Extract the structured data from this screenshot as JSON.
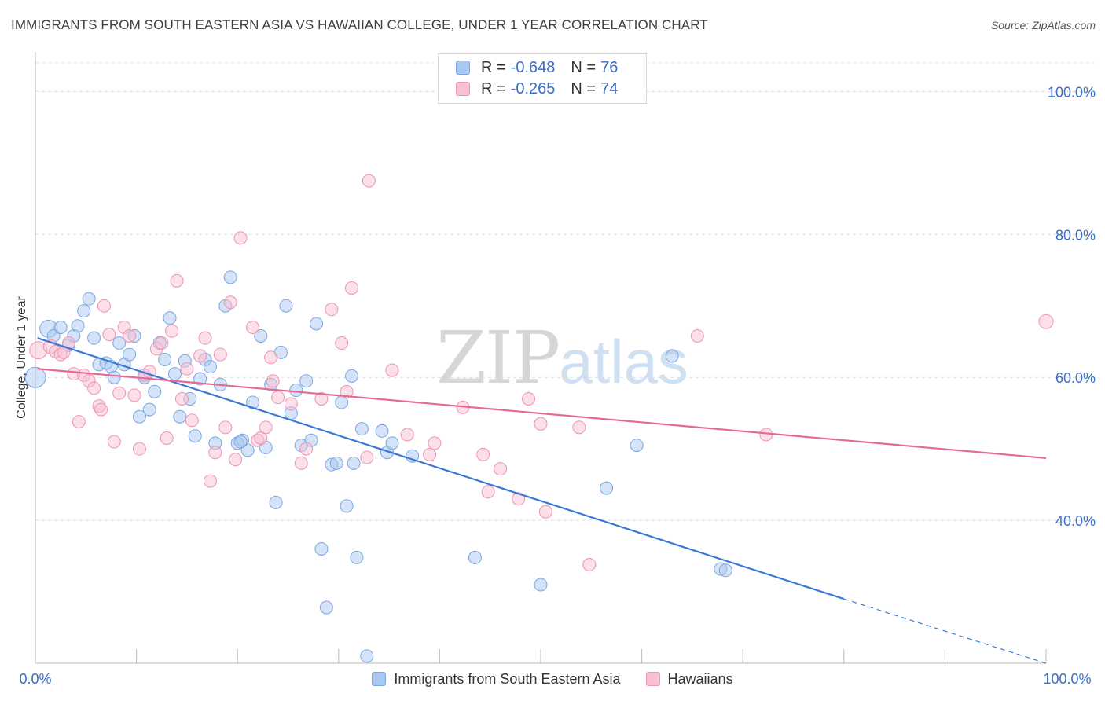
{
  "title": "IMMIGRANTS FROM SOUTH EASTERN ASIA VS HAWAIIAN COLLEGE, UNDER 1 YEAR CORRELATION CHART",
  "source": "Source: ZipAtlas.com",
  "watermark": {
    "zip": "ZIP",
    "atlas": "atlas"
  },
  "legend": {
    "rows": [
      {
        "r_label": "R =",
        "r_value": "-0.648",
        "n_label": "N =",
        "n_value": "76",
        "color": "#a9c8f0",
        "border": "#7aa7e0"
      },
      {
        "r_label": "R =",
        "r_value": "-0.265",
        "n_label": "N =",
        "n_value": "74",
        "color": "#f7c0d3",
        "border": "#ee93b3"
      }
    ]
  },
  "bottom_legend": {
    "items": [
      {
        "label": "Immigrants from South Eastern Asia",
        "color": "#a9c8f0",
        "border": "#7aa7e0"
      },
      {
        "label": "Hawaiians",
        "color": "#f7c0d3",
        "border": "#ee93b3"
      }
    ]
  },
  "colors": {
    "blue": "#3a78d6",
    "pink": "#e36a96",
    "tick_text": "#3a6fc7",
    "grid": "#dcdcdc"
  },
  "chart_data": {
    "type": "scatter",
    "title": "IMMIGRANTS FROM SOUTH EASTERN ASIA VS HAWAIIAN COLLEGE, UNDER 1 YEAR CORRELATION CHART",
    "xlabel": "",
    "ylabel": "College, Under 1 year",
    "xlim": [
      0,
      100
    ],
    "ylim": [
      20,
      104
    ],
    "x_tick_labels": [
      "0.0%",
      "100.0%"
    ],
    "y_ticks": [
      40,
      60,
      80,
      100
    ],
    "y_tick_labels": [
      "40.0%",
      "60.0%",
      "80.0%",
      "100.0%"
    ],
    "grid": true,
    "legend_position": "top-center",
    "series": [
      {
        "name": "Immigrants from South Eastern Asia",
        "color": "#a9c8f0",
        "trend": {
          "x0": 0.2,
          "y0": 65.5,
          "x1": 80,
          "y1": 29,
          "dash_to_x": 100,
          "dash_to_y": 20
        },
        "points": [
          [
            0.0,
            60.0,
            13
          ],
          [
            1.3,
            66.8,
            11
          ],
          [
            1.8,
            65.8,
            8
          ],
          [
            2.5,
            67.0,
            8
          ],
          [
            3.3,
            64.5,
            8
          ],
          [
            3.8,
            65.8,
            8
          ],
          [
            4.2,
            67.2,
            8
          ],
          [
            4.8,
            69.3,
            8
          ],
          [
            5.3,
            71.0,
            8
          ],
          [
            5.8,
            65.5,
            8
          ],
          [
            6.3,
            61.8,
            8
          ],
          [
            7.0,
            62.0,
            8
          ],
          [
            7.5,
            61.5,
            8
          ],
          [
            7.8,
            60.0,
            8
          ],
          [
            8.3,
            64.8,
            8
          ],
          [
            8.8,
            61.8,
            8
          ],
          [
            9.3,
            63.2,
            8
          ],
          [
            9.8,
            65.8,
            8
          ],
          [
            10.3,
            54.5,
            8
          ],
          [
            10.8,
            60.0,
            8
          ],
          [
            11.3,
            55.5,
            8
          ],
          [
            11.8,
            58.0,
            8
          ],
          [
            12.3,
            64.8,
            8
          ],
          [
            12.8,
            62.5,
            8
          ],
          [
            13.3,
            68.3,
            8
          ],
          [
            13.8,
            60.5,
            8
          ],
          [
            14.3,
            54.5,
            8
          ],
          [
            14.8,
            62.3,
            8
          ],
          [
            15.3,
            57.0,
            8
          ],
          [
            15.8,
            51.8,
            8
          ],
          [
            16.3,
            59.8,
            8
          ],
          [
            16.8,
            62.5,
            8
          ],
          [
            17.3,
            61.5,
            8
          ],
          [
            17.8,
            50.8,
            8
          ],
          [
            18.3,
            59.0,
            8
          ],
          [
            18.8,
            70.0,
            8
          ],
          [
            19.3,
            74.0,
            8
          ],
          [
            20.0,
            50.8,
            8
          ],
          [
            20.5,
            51.2,
            8
          ],
          [
            21.0,
            49.8,
            8
          ],
          [
            21.5,
            56.5,
            8
          ],
          [
            22.3,
            65.8,
            8
          ],
          [
            22.8,
            50.2,
            8
          ],
          [
            23.3,
            59.0,
            8
          ],
          [
            23.8,
            42.5,
            8
          ],
          [
            24.3,
            63.5,
            8
          ],
          [
            24.8,
            70.0,
            8
          ],
          [
            25.3,
            55.0,
            8
          ],
          [
            25.8,
            58.2,
            8
          ],
          [
            26.3,
            50.5,
            8
          ],
          [
            26.8,
            59.5,
            8
          ],
          [
            27.3,
            51.2,
            8
          ],
          [
            27.8,
            67.5,
            8
          ],
          [
            28.3,
            36.0,
            8
          ],
          [
            28.8,
            27.8,
            8
          ],
          [
            29.3,
            47.8,
            8
          ],
          [
            29.8,
            48.0,
            8
          ],
          [
            30.3,
            56.5,
            8
          ],
          [
            30.8,
            42.0,
            8
          ],
          [
            31.3,
            60.2,
            8
          ],
          [
            31.8,
            34.8,
            8
          ],
          [
            32.3,
            52.8,
            8
          ],
          [
            32.8,
            21.0,
            8
          ],
          [
            34.3,
            52.5,
            8
          ],
          [
            34.8,
            49.5,
            8
          ],
          [
            35.3,
            50.8,
            8
          ],
          [
            37.3,
            49.0,
            8
          ],
          [
            43.5,
            34.8,
            8
          ],
          [
            50.0,
            31.0,
            8
          ],
          [
            56.5,
            44.5,
            8
          ],
          [
            59.5,
            50.5,
            8
          ],
          [
            63.0,
            63.0,
            8
          ],
          [
            67.8,
            33.2,
            8
          ],
          [
            68.3,
            33.0,
            8
          ],
          [
            31.5,
            48.0,
            8
          ],
          [
            20.3,
            51.0,
            8
          ]
        ]
      },
      {
        "name": "Hawaiians",
        "color": "#f7c0d3",
        "trend": {
          "x0": 0.2,
          "y0": 61.2,
          "x1": 100,
          "y1": 48.7
        },
        "points": [
          [
            0.3,
            63.8,
            11
          ],
          [
            1.5,
            64.3,
            9
          ],
          [
            2.0,
            63.6,
            8
          ],
          [
            2.5,
            63.2,
            8
          ],
          [
            3.3,
            64.8,
            8
          ],
          [
            3.8,
            60.5,
            8
          ],
          [
            4.3,
            53.8,
            8
          ],
          [
            4.8,
            60.3,
            8
          ],
          [
            5.3,
            59.5,
            8
          ],
          [
            5.8,
            58.5,
            8
          ],
          [
            6.3,
            56.0,
            8
          ],
          [
            6.5,
            55.5,
            8
          ],
          [
            6.8,
            70.0,
            8
          ],
          [
            7.3,
            66.0,
            8
          ],
          [
            7.8,
            51.0,
            8
          ],
          [
            8.3,
            57.8,
            8
          ],
          [
            8.8,
            67.0,
            8
          ],
          [
            9.3,
            65.8,
            8
          ],
          [
            9.8,
            57.5,
            8
          ],
          [
            10.3,
            50.0,
            8
          ],
          [
            10.8,
            60.3,
            8
          ],
          [
            11.3,
            60.8,
            8
          ],
          [
            12.0,
            64.0,
            8
          ],
          [
            12.5,
            64.8,
            8
          ],
          [
            13.0,
            51.5,
            8
          ],
          [
            13.5,
            66.5,
            8
          ],
          [
            14.0,
            73.5,
            8
          ],
          [
            14.5,
            57.0,
            8
          ],
          [
            15.0,
            61.2,
            8
          ],
          [
            15.5,
            54.0,
            8
          ],
          [
            16.3,
            63.0,
            8
          ],
          [
            16.8,
            65.5,
            8
          ],
          [
            17.3,
            45.5,
            8
          ],
          [
            17.8,
            49.5,
            8
          ],
          [
            18.3,
            63.2,
            8
          ],
          [
            18.8,
            53.0,
            8
          ],
          [
            19.3,
            70.5,
            8
          ],
          [
            19.8,
            48.5,
            8
          ],
          [
            20.3,
            79.5,
            8
          ],
          [
            21.5,
            67.0,
            8
          ],
          [
            22.0,
            51.2,
            8
          ],
          [
            22.3,
            51.5,
            8
          ],
          [
            22.8,
            53.0,
            8
          ],
          [
            23.3,
            62.8,
            8
          ],
          [
            23.5,
            59.5,
            8
          ],
          [
            24.0,
            57.2,
            8
          ],
          [
            25.3,
            56.3,
            8
          ],
          [
            26.3,
            48.0,
            8
          ],
          [
            26.8,
            50.0,
            8
          ],
          [
            28.3,
            57.0,
            8
          ],
          [
            29.3,
            69.5,
            8
          ],
          [
            30.3,
            64.8,
            8
          ],
          [
            30.8,
            58.0,
            8
          ],
          [
            31.3,
            72.5,
            8
          ],
          [
            32.8,
            48.8,
            8
          ],
          [
            33.0,
            87.5,
            8
          ],
          [
            35.3,
            61.0,
            8
          ],
          [
            36.8,
            52.0,
            8
          ],
          [
            39.0,
            49.2,
            8
          ],
          [
            39.5,
            50.8,
            8
          ],
          [
            42.3,
            55.8,
            8
          ],
          [
            44.3,
            49.2,
            8
          ],
          [
            44.8,
            44.0,
            8
          ],
          [
            46.0,
            47.2,
            8
          ],
          [
            47.8,
            43.0,
            8
          ],
          [
            48.8,
            57.0,
            8
          ],
          [
            50.0,
            53.5,
            8
          ],
          [
            50.5,
            41.2,
            8
          ],
          [
            53.8,
            53.0,
            8
          ],
          [
            54.8,
            33.8,
            8
          ],
          [
            65.5,
            65.8,
            8
          ],
          [
            72.3,
            52.0,
            8
          ],
          [
            100.0,
            67.8,
            9
          ],
          [
            2.8,
            63.5,
            8
          ]
        ]
      }
    ]
  }
}
